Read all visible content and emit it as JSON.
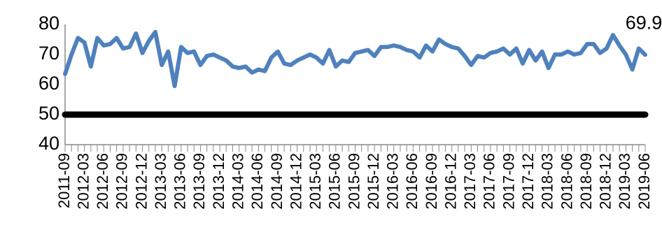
{
  "chart_data": {
    "type": "line",
    "categories": [
      "2011-09",
      null,
      null,
      "2012-03",
      null,
      null,
      "2012-06",
      null,
      null,
      "2012-09",
      null,
      null,
      "2012-12",
      null,
      null,
      "2013-03",
      null,
      null,
      "2013-06",
      null,
      null,
      "2013-09",
      null,
      null,
      "2013-12",
      null,
      null,
      "2014-03",
      null,
      null,
      "2014-06",
      null,
      null,
      "2014-09",
      null,
      null,
      "2014-12",
      null,
      null,
      "2015-03",
      null,
      null,
      "2015-06",
      null,
      null,
      "2015-09",
      null,
      null,
      "2015-12",
      null,
      null,
      "2016-03",
      null,
      null,
      "2016-06",
      null,
      null,
      "2016-09",
      null,
      null,
      "2016-12",
      null,
      null,
      "2017-03",
      null,
      null,
      "2017-06",
      null,
      null,
      "2017-09",
      null,
      null,
      "2017-12",
      null,
      null,
      "2018-03",
      null,
      null,
      "2018-06",
      null,
      null,
      "2018-09",
      null,
      null,
      "2018-12",
      null,
      null,
      "2019-03",
      null,
      null,
      "2019-06"
    ],
    "series": [
      {
        "color": "#4f81bd",
        "values": [
          63.5,
          70,
          75.5,
          74,
          66,
          75.5,
          73,
          73.5,
          75.5,
          72,
          72.5,
          77,
          70.5,
          74.5,
          77.5,
          66.5,
          71,
          59.5,
          72.5,
          70.5,
          71,
          66.5,
          69.5,
          70,
          69,
          68,
          66,
          65.5,
          66,
          64,
          65,
          64.5,
          69,
          71,
          67,
          66.5,
          68,
          69,
          70,
          69,
          67,
          71.5,
          66,
          68,
          67.5,
          70.5,
          71,
          71.5,
          69.5,
          72.5,
          72.5,
          73,
          72.5,
          71.5,
          71,
          69,
          73,
          71,
          75,
          73.5,
          72.5,
          72,
          69.5,
          66.5,
          69.5,
          69,
          70.5,
          71,
          72,
          70,
          72,
          67,
          71.5,
          68,
          71,
          65.5,
          70,
          70,
          71,
          70,
          70.5,
          73.5,
          73.5,
          70.5,
          72,
          76.5,
          73,
          70,
          65,
          72,
          69.9
        ]
      },
      {
        "color": "#000000",
        "values": [
          50,
          50,
          50,
          50,
          50,
          50,
          50,
          50,
          50,
          50,
          50,
          50,
          50,
          50,
          50,
          50,
          50,
          50,
          50,
          50,
          50,
          50,
          50,
          50,
          50,
          50,
          50,
          50,
          50,
          50,
          50,
          50,
          50,
          50,
          50,
          50,
          50,
          50,
          50,
          50,
          50,
          50,
          50,
          50,
          50,
          50,
          50,
          50,
          50,
          50,
          50,
          50,
          50,
          50,
          50,
          50,
          50,
          50,
          50,
          50,
          50,
          50,
          50,
          50,
          50,
          50,
          50,
          50,
          50,
          50,
          50,
          50,
          50,
          50,
          50,
          50,
          50,
          50,
          50,
          50,
          50,
          50,
          50,
          50,
          50,
          50,
          50,
          50,
          50,
          50,
          50
        ]
      }
    ],
    "ylim": [
      40,
      80
    ],
    "yticks": [
      40,
      50,
      60,
      70,
      80
    ]
  }
}
